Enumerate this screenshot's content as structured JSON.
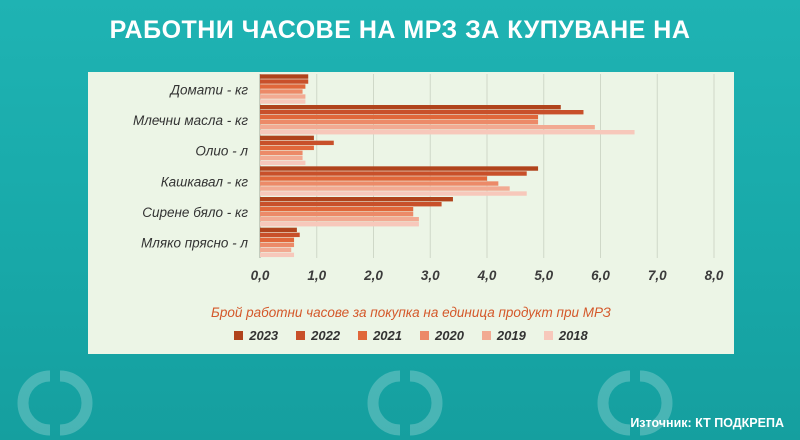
{
  "page": {
    "title": "РАБОТНИ ЧАСОВЕ НА МРЗ ЗА КУПУВАНЕ НА",
    "source": "Източник: КТ ПОДКРЕПА",
    "background_color": "#1aadad",
    "panel_color": "#ecf5e6"
  },
  "chart_data": {
    "type": "bar",
    "orientation": "horizontal",
    "xlabel": "Брой работни часове за покупка на единица продукт при МРЗ",
    "xlim": [
      0,
      8
    ],
    "xticks": [
      "0,0",
      "1,0",
      "2,0",
      "3,0",
      "4,0",
      "5,0",
      "6,0",
      "7,0",
      "8,0"
    ],
    "categories": [
      "Домати - кг",
      "Млечни масла - кг",
      "Олио - л",
      "Кашкавал - кг",
      "Сирене бяло - кг",
      "Мляко прясно - л"
    ],
    "series": [
      {
        "name": "2023",
        "color": "#b0431c",
        "values": [
          0.85,
          5.3,
          0.95,
          4.9,
          3.4,
          0.65
        ]
      },
      {
        "name": "2022",
        "color": "#c8502a",
        "values": [
          0.85,
          5.7,
          1.3,
          4.7,
          3.2,
          0.7
        ]
      },
      {
        "name": "2021",
        "color": "#e0673a",
        "values": [
          0.8,
          4.9,
          0.95,
          4.0,
          2.7,
          0.6
        ]
      },
      {
        "name": "2020",
        "color": "#ec8a68",
        "values": [
          0.75,
          4.9,
          0.75,
          4.2,
          2.7,
          0.6
        ]
      },
      {
        "name": "2019",
        "color": "#f2aa92",
        "values": [
          0.8,
          5.9,
          0.75,
          4.4,
          2.8,
          0.55
        ]
      },
      {
        "name": "2018",
        "color": "#f7c8bb",
        "values": [
          0.8,
          6.6,
          0.8,
          4.7,
          2.8,
          0.6
        ]
      }
    ],
    "legend_position": "bottom",
    "grid": true
  }
}
